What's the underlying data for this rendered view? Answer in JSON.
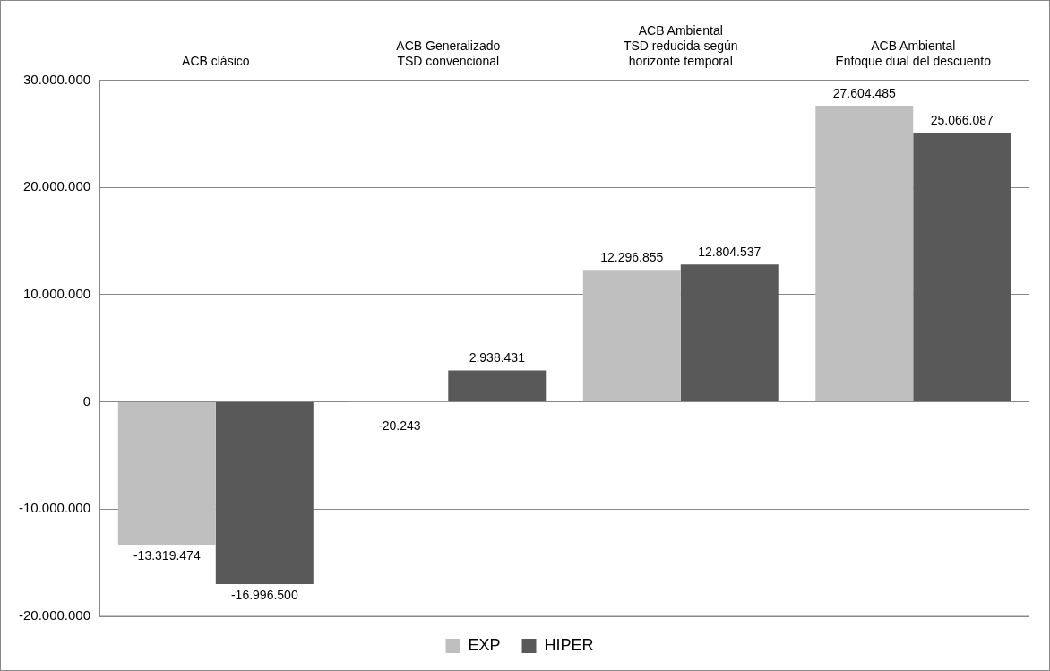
{
  "chart_data": {
    "type": "bar",
    "categories": [
      "ACB clásico",
      "ACB Generalizado\nTSD convencional",
      "ACB Ambiental\nTSD reducida según\nhorizonte temporal",
      "ACB Ambiental\nEnfoque dual del descuento"
    ],
    "series": [
      {
        "name": "EXP",
        "color": "#bfbfbf",
        "values": [
          -13319474,
          -20243,
          12296855,
          27604485
        ],
        "value_labels": [
          "-13.319.474",
          "-20.243",
          "12.296.855",
          "27.604.485"
        ]
      },
      {
        "name": "HIPER",
        "color": "#595959",
        "values": [
          -16996500,
          2938431,
          12804537,
          25066087
        ],
        "value_labels": [
          "-16.996.500",
          "2.938.431",
          "12.804.537",
          "25.066.087"
        ]
      }
    ],
    "ylim": [
      -20000000,
      30000000
    ],
    "yticks": [
      {
        "value": -20000000,
        "label": "-20.000.000"
      },
      {
        "value": -10000000,
        "label": "-10.000.000"
      },
      {
        "value": 0,
        "label": "0"
      },
      {
        "value": 10000000,
        "label": "10.000.000"
      },
      {
        "value": 20000000,
        "label": "20.000.000"
      },
      {
        "value": 30000000,
        "label": "30.000.000"
      }
    ],
    "grid": "y",
    "legend": "bottom"
  }
}
